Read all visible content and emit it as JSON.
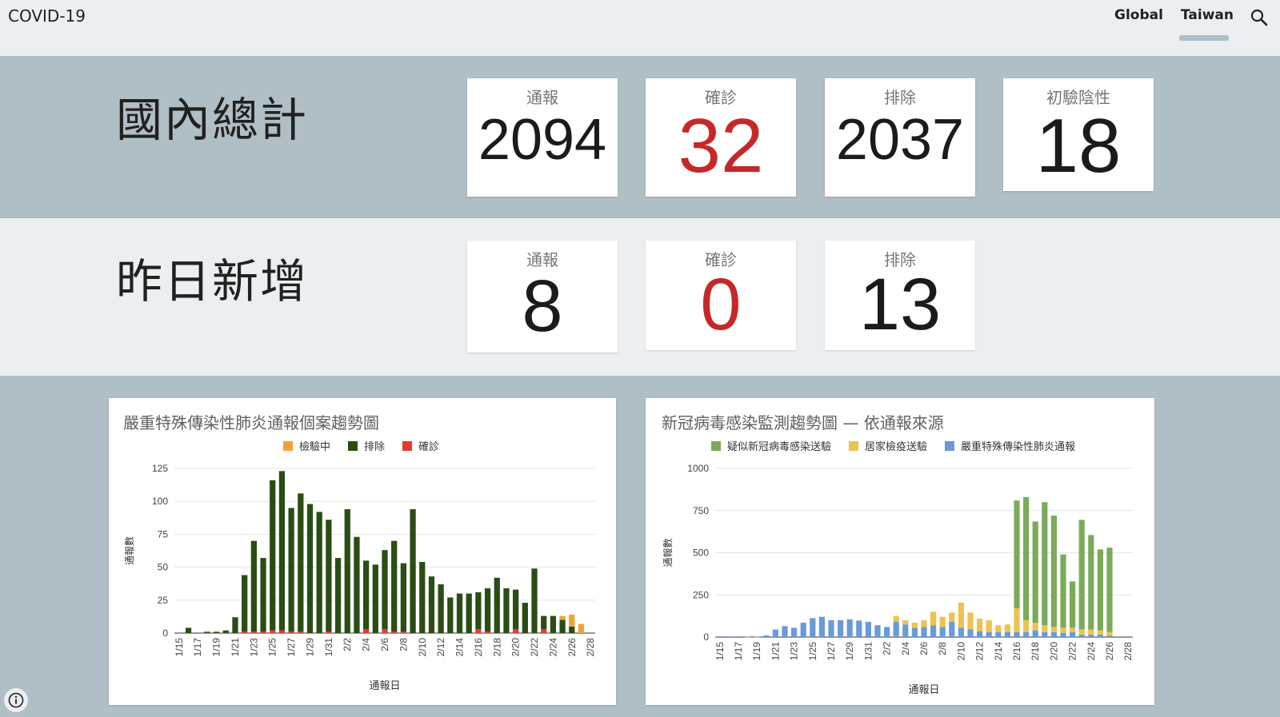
{
  "app": {
    "title": "COVID-19"
  },
  "nav": {
    "global": "Global",
    "taiwan": "Taiwan",
    "search_icon": "search-icon"
  },
  "totals": {
    "title": "國內總計",
    "cards": [
      {
        "label": "通報",
        "value": "2094"
      },
      {
        "label": "確診",
        "value": "32"
      },
      {
        "label": "排除",
        "value": "2037"
      },
      {
        "label": "初驗陰性",
        "value": "18"
      }
    ]
  },
  "new_yesterday": {
    "title": "昨日新增",
    "cards": [
      {
        "label": "通報",
        "value": "8"
      },
      {
        "label": "確診",
        "value": "0"
      },
      {
        "label": "排除",
        "value": "13"
      }
    ]
  },
  "colors": {
    "confirmed_red": "#c62828",
    "pending_orange": "#f4a236",
    "excluded_green": "#2a4d14",
    "confirmed_bar": "#e8392f",
    "suspect_green": "#7bab5a",
    "quarantine_yellow": "#efc250",
    "severe_blue": "#6a9bd8"
  },
  "chart_data": [
    {
      "type": "bar",
      "stacked": true,
      "title": "嚴重特殊傳染性肺炎通報個案趨勢圖",
      "xlabel": "通報日",
      "ylabel": "通報數",
      "ylim": [
        0,
        125
      ],
      "yticks": [
        0,
        25,
        50,
        75,
        100,
        125
      ],
      "legend_position": "top",
      "x": [
        "1/15",
        "1/16",
        "1/17",
        "1/18",
        "1/19",
        "1/20",
        "1/21",
        "1/22",
        "1/23",
        "1/24",
        "1/25",
        "1/26",
        "1/27",
        "1/28",
        "1/29",
        "1/30",
        "1/31",
        "2/1",
        "2/2",
        "2/3",
        "2/4",
        "2/5",
        "2/6",
        "2/7",
        "2/8",
        "2/9",
        "2/10",
        "2/11",
        "2/12",
        "2/13",
        "2/14",
        "2/15",
        "2/16",
        "2/17",
        "2/18",
        "2/19",
        "2/20",
        "2/21",
        "2/22",
        "2/23",
        "2/24",
        "2/25",
        "2/26",
        "2/27",
        "2/28"
      ],
      "xtick_labels": [
        "1/15",
        "1/17",
        "1/19",
        "1/21",
        "1/23",
        "1/25",
        "1/27",
        "1/29",
        "1/31",
        "2/2",
        "2/4",
        "2/6",
        "2/8",
        "2/10",
        "2/12",
        "2/14",
        "2/16",
        "2/18",
        "2/20",
        "2/22",
        "2/24",
        "2/26",
        "2/28"
      ],
      "series": [
        {
          "name": "確診",
          "color": "#e8392f",
          "values": [
            0,
            0,
            0,
            0,
            0,
            0,
            0,
            1,
            1,
            1,
            2,
            2,
            1,
            1,
            0,
            0,
            1,
            0,
            0,
            0,
            3,
            0,
            3,
            1,
            1,
            0,
            0,
            0,
            0,
            0,
            0,
            0,
            3,
            1,
            0,
            0,
            3,
            0,
            0,
            3,
            0,
            0,
            0,
            0,
            0
          ]
        },
        {
          "name": "排除",
          "color": "#2a4d14",
          "values": [
            0,
            4,
            0,
            1,
            1,
            2,
            12,
            43,
            69,
            56,
            114,
            121,
            94,
            105,
            98,
            92,
            85,
            57,
            94,
            73,
            52,
            52,
            60,
            69,
            52,
            94,
            54,
            43,
            37,
            27,
            30,
            30,
            28,
            33,
            42,
            34,
            30,
            23,
            49,
            10,
            13,
            10,
            5,
            0,
            0
          ]
        },
        {
          "name": "檢驗中",
          "color": "#f4a236",
          "values": [
            0,
            0,
            0,
            0,
            0,
            0,
            0,
            0,
            0,
            0,
            0,
            0,
            0,
            0,
            0,
            0,
            0,
            0,
            0,
            0,
            0,
            0,
            0,
            0,
            0,
            0,
            0,
            0,
            0,
            0,
            0,
            0,
            0,
            0,
            0,
            0,
            0,
            0,
            0,
            0,
            0,
            3,
            9,
            7,
            0
          ]
        }
      ]
    },
    {
      "type": "bar",
      "stacked": true,
      "title": "新冠病毒感染監測趨勢圖 — 依通報來源",
      "xlabel": "通報日",
      "ylabel": "通報數",
      "ylim": [
        0,
        1000
      ],
      "yticks": [
        0,
        250,
        500,
        750,
        1000
      ],
      "legend_position": "top",
      "x": [
        "1/15",
        "1/16",
        "1/17",
        "1/18",
        "1/19",
        "1/20",
        "1/21",
        "1/22",
        "1/23",
        "1/24",
        "1/25",
        "1/26",
        "1/27",
        "1/28",
        "1/29",
        "1/30",
        "1/31",
        "2/1",
        "2/2",
        "2/3",
        "2/4",
        "2/5",
        "2/6",
        "2/7",
        "2/8",
        "2/9",
        "2/10",
        "2/11",
        "2/12",
        "2/13",
        "2/14",
        "2/15",
        "2/16",
        "2/17",
        "2/18",
        "2/19",
        "2/20",
        "2/21",
        "2/22",
        "2/23",
        "2/24",
        "2/25",
        "2/26",
        "2/27",
        "2/28"
      ],
      "xtick_labels": [
        "1/15",
        "1/17",
        "1/19",
        "1/21",
        "1/23",
        "1/25",
        "1/27",
        "1/29",
        "1/31",
        "2/2",
        "2/4",
        "2/6",
        "2/8",
        "2/10",
        "2/12",
        "2/14",
        "2/16",
        "2/18",
        "2/20",
        "2/22",
        "2/24",
        "2/26",
        "2/28"
      ],
      "series": [
        {
          "name": "嚴重特殊傳染性肺炎通報",
          "color": "#6a9bd8",
          "values": [
            0,
            4,
            0,
            1,
            1,
            10,
            45,
            65,
            55,
            85,
            112,
            120,
            100,
            100,
            105,
            98,
            90,
            70,
            60,
            90,
            75,
            55,
            60,
            70,
            60,
            90,
            55,
            45,
            35,
            30,
            30,
            30,
            30,
            30,
            40,
            30,
            30,
            25,
            30,
            15,
            15,
            15,
            10,
            0,
            0
          ]
        },
        {
          "name": "居家檢疫送驗",
          "color": "#efc250",
          "values": [
            0,
            0,
            0,
            0,
            0,
            0,
            0,
            0,
            0,
            0,
            0,
            0,
            0,
            0,
            0,
            0,
            0,
            0,
            0,
            35,
            25,
            30,
            40,
            80,
            60,
            55,
            150,
            100,
            75,
            70,
            40,
            45,
            140,
            70,
            45,
            40,
            30,
            30,
            25,
            30,
            30,
            25,
            20,
            0,
            0
          ]
        },
        {
          "name": "疑似新冠病毒感染送驗",
          "color": "#7bab5a",
          "values": [
            0,
            0,
            0,
            0,
            0,
            0,
            0,
            0,
            0,
            0,
            0,
            0,
            0,
            0,
            0,
            0,
            0,
            0,
            0,
            0,
            0,
            0,
            0,
            0,
            0,
            0,
            0,
            0,
            0,
            0,
            0,
            0,
            640,
            730,
            600,
            730,
            660,
            435,
            275,
            650,
            560,
            480,
            500,
            0,
            0
          ]
        }
      ]
    }
  ]
}
